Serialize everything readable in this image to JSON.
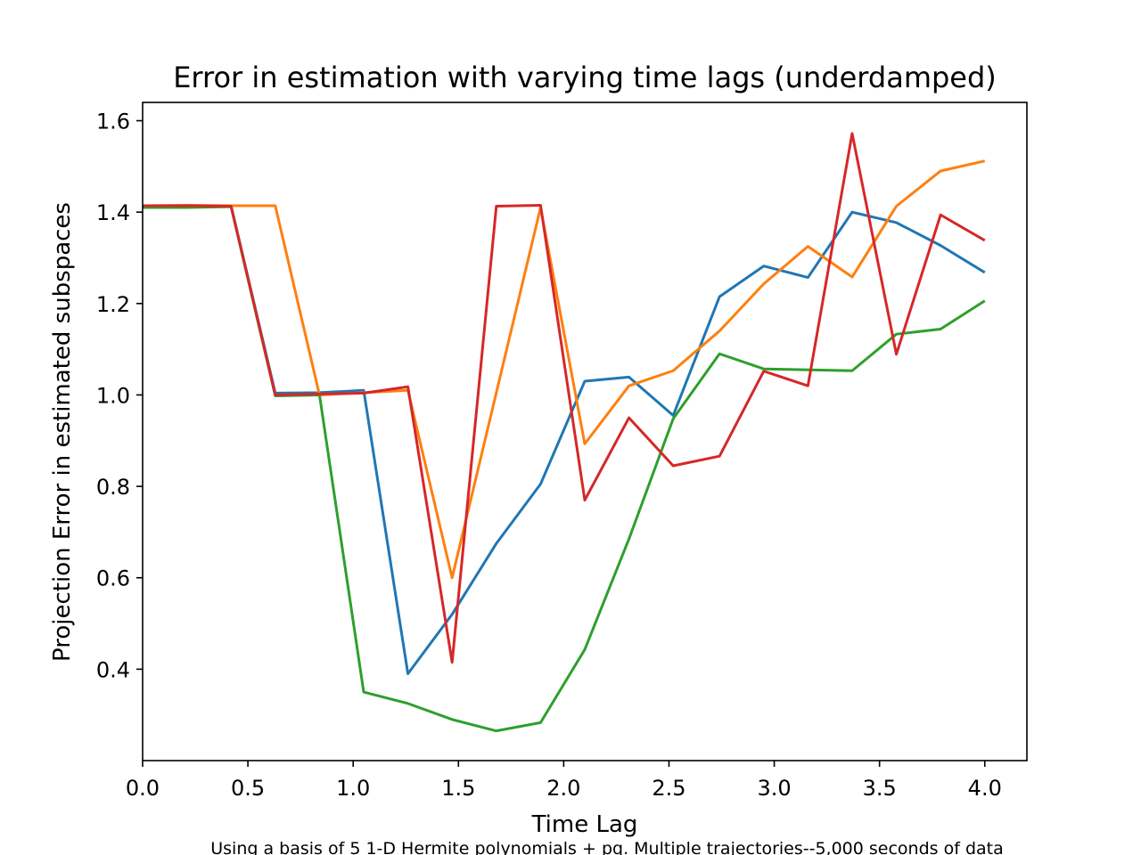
{
  "chart_data": {
    "type": "line",
    "title": "Error in estimation with varying time lags (underdamped)",
    "xlabel": "Time Lag",
    "ylabel": "Projection Error in estimated subspaces",
    "caption": "Using a basis of 5 1-D Hermite polynomials + pq. Multiple trajectories--5,000 seconds of data",
    "xlim": [
      0.0,
      4.2
    ],
    "ylim": [
      0.2,
      1.64
    ],
    "x_ticks": [
      "0.0",
      "0.5",
      "1.0",
      "1.5",
      "2.0",
      "2.5",
      "3.0",
      "3.5",
      "4.0"
    ],
    "y_ticks": [
      "0.4",
      "0.6",
      "0.8",
      "1.0",
      "1.2",
      "1.4",
      "1.6"
    ],
    "grid": false,
    "legend": "none",
    "x": [
      0.0,
      0.21,
      0.42,
      0.63,
      0.84,
      1.05,
      1.26,
      1.47,
      1.68,
      1.89,
      2.1,
      2.31,
      2.52,
      2.74,
      2.95,
      3.16,
      3.37,
      3.58,
      3.79,
      4.0
    ],
    "series": [
      {
        "color": "#1f77b4",
        "values": [
          1.414,
          1.414,
          1.414,
          1.004,
          1.005,
          1.01,
          0.39,
          0.52,
          0.675,
          0.805,
          1.03,
          1.039,
          0.955,
          1.215,
          1.282,
          1.257,
          1.4,
          1.377,
          1.327,
          1.268
        ]
      },
      {
        "color": "#ff7f0e",
        "values": [
          1.414,
          1.415,
          1.414,
          1.414,
          1.0,
          1.005,
          1.01,
          0.6,
          1.005,
          1.41,
          0.893,
          1.02,
          1.053,
          1.14,
          1.243,
          1.325,
          1.258,
          1.413,
          1.49,
          1.512
        ]
      },
      {
        "color": "#2ca02c",
        "values": [
          1.41,
          1.41,
          1.412,
          0.998,
          1.0,
          0.35,
          0.325,
          0.29,
          0.265,
          0.283,
          0.443,
          0.685,
          0.948,
          1.09,
          1.057,
          1.055,
          1.053,
          1.133,
          1.144,
          1.206
        ]
      },
      {
        "color": "#d62728",
        "values": [
          1.414,
          1.414,
          1.413,
          1.0,
          1.002,
          1.004,
          1.018,
          0.415,
          1.413,
          1.415,
          0.77,
          0.95,
          0.845,
          0.866,
          1.052,
          1.02,
          1.572,
          1.089,
          1.394,
          1.338
        ]
      }
    ]
  }
}
